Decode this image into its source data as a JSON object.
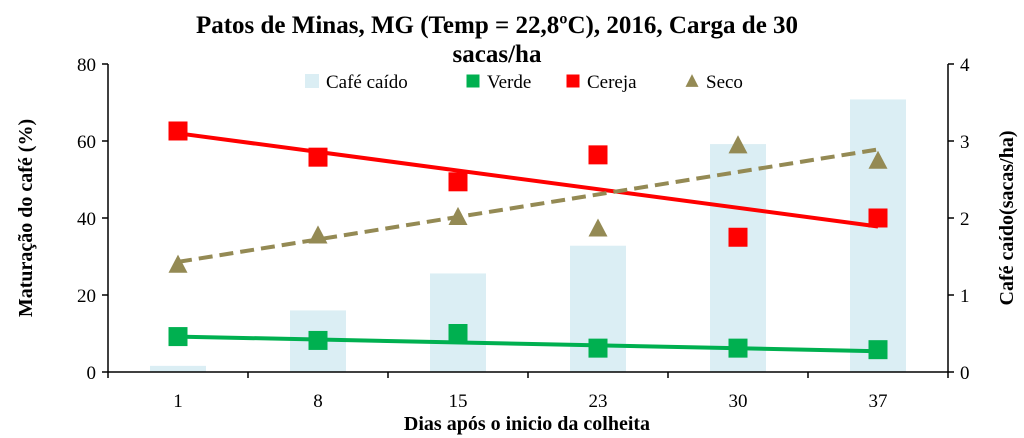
{
  "chart_data": {
    "type": "bar",
    "title_line1": "Patos de Minas, MG (Temp = 22,8ºC), 2016, Carga de 30",
    "title_line2": "sacas/ha",
    "xlabel": "Dias após o inicio da colheita",
    "ylabel_left": "Maturação do café (%)",
    "ylabel_right": "Café caído(sacas/ha)",
    "categories": [
      "1",
      "8",
      "15",
      "23",
      "30",
      "37"
    ],
    "ylim_left": [
      0,
      80
    ],
    "yticks_left": [
      "0",
      "20",
      "40",
      "60",
      "80"
    ],
    "ylim_right": [
      0,
      4
    ],
    "yticks_right": [
      "0",
      "1",
      "2",
      "3",
      "4"
    ],
    "legend_position": "top",
    "bars": {
      "name": "Café caído",
      "axis": "right",
      "color": "#dbeef4",
      "values": [
        0.08,
        0.8,
        1.28,
        1.64,
        2.96,
        3.54
      ]
    },
    "series": [
      {
        "name": "Verde",
        "axis": "left",
        "marker": "square",
        "color": "#00b050",
        "values": [
          9.2,
          8.2,
          10.0,
          6.2,
          6.2,
          5.8
        ],
        "trend": [
          9.2,
          5.4
        ],
        "trend_style": "solid"
      },
      {
        "name": "Cereja",
        "axis": "left",
        "marker": "square",
        "color": "#ff0000",
        "values": [
          62.6,
          55.8,
          49.4,
          56.4,
          35.0,
          40.0
        ],
        "trend": [
          62.0,
          37.8
        ],
        "trend_style": "solid"
      },
      {
        "name": "Seco",
        "axis": "left",
        "marker": "triangle",
        "color": "#948a54",
        "values": [
          28.0,
          35.6,
          40.4,
          37.4,
          59.0,
          55.0
        ],
        "trend": [
          28.6,
          57.8
        ],
        "trend_style": "dashed"
      }
    ]
  }
}
